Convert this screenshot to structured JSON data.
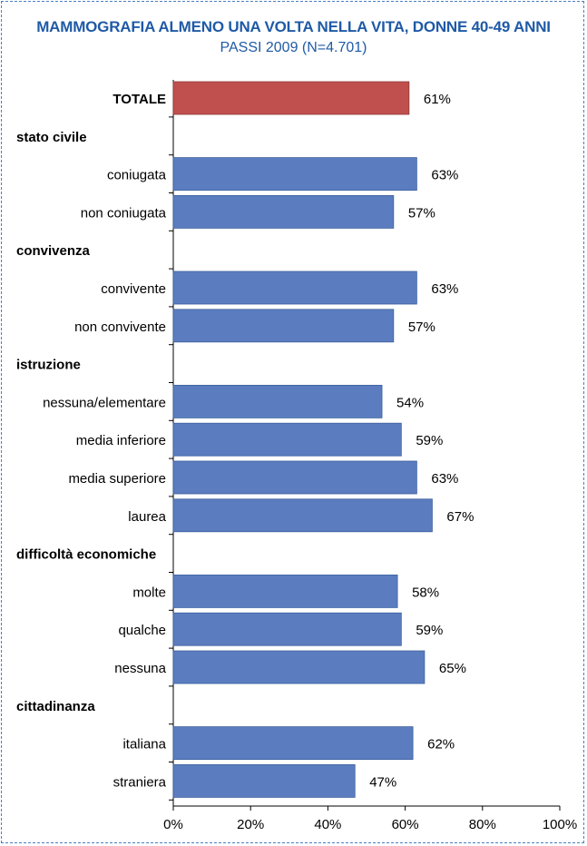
{
  "chart_data": {
    "type": "bar",
    "orientation": "horizontal",
    "title": "MAMMOGRAFIA ALMENO UNA VOLTA NELLA VITA, DONNE 40-49 ANNI",
    "subtitle": "PASSI 2009 (N=4.701)",
    "rows": [
      {
        "label": "TOTALE",
        "value": 61,
        "display": "61%",
        "kind": "total"
      },
      {
        "label": "stato civile",
        "kind": "group"
      },
      {
        "label": "coniugata",
        "value": 63,
        "display": "63%",
        "kind": "bar"
      },
      {
        "label": "non coniugata",
        "value": 57,
        "display": "57%",
        "kind": "bar"
      },
      {
        "label": "convivenza",
        "kind": "group"
      },
      {
        "label": "convivente",
        "value": 63,
        "display": "63%",
        "kind": "bar"
      },
      {
        "label": "non convivente",
        "value": 57,
        "display": "57%",
        "kind": "bar"
      },
      {
        "label": "istruzione",
        "kind": "group"
      },
      {
        "label": "nessuna/elementare",
        "value": 54,
        "display": "54%",
        "kind": "bar"
      },
      {
        "label": "media inferiore",
        "value": 59,
        "display": "59%",
        "kind": "bar"
      },
      {
        "label": "media superiore",
        "value": 63,
        "display": "63%",
        "kind": "bar"
      },
      {
        "label": "laurea",
        "value": 67,
        "display": "67%",
        "kind": "bar"
      },
      {
        "label": "difficoltà economiche",
        "kind": "group"
      },
      {
        "label": "molte",
        "value": 58,
        "display": "58%",
        "kind": "bar"
      },
      {
        "label": "qualche",
        "value": 59,
        "display": "59%",
        "kind": "bar"
      },
      {
        "label": "nessuna",
        "value": 65,
        "display": "65%",
        "kind": "bar"
      },
      {
        "label": "cittadinanza",
        "kind": "group"
      },
      {
        "label": "italiana",
        "value": 62,
        "display": "62%",
        "kind": "bar"
      },
      {
        "label": "straniera",
        "value": 47,
        "display": "47%",
        "kind": "bar"
      }
    ],
    "xlim": [
      0,
      100
    ],
    "xticks": [
      "0%",
      "20%",
      "40%",
      "60%",
      "80%",
      "100%"
    ],
    "grid": false,
    "colors": {
      "total": "#c0504d",
      "bar": "#5b7dbf",
      "title": "#1f5aa6",
      "frame": "#4a7fc0"
    }
  }
}
